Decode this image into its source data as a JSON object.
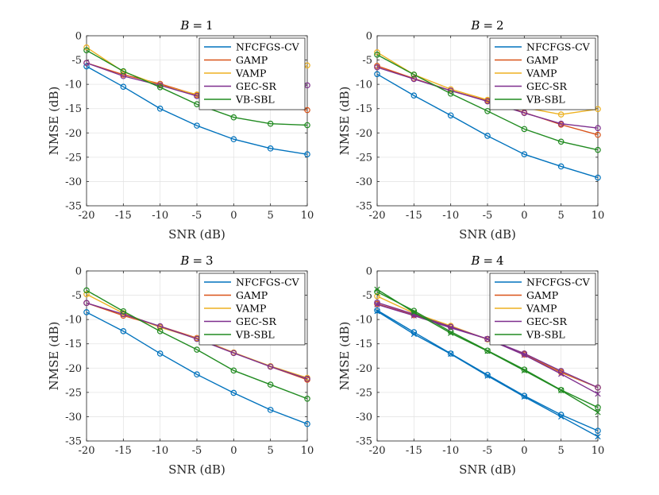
{
  "chart_data": [
    {
      "type": "line",
      "title": {
        "var": "B",
        "op": "=",
        "val": "1"
      },
      "xlabel": "SNR (dB)",
      "ylabel": "NMSE (dB)",
      "x": [
        -20,
        -15,
        -10,
        -5,
        0,
        5,
        10
      ],
      "xlim": [
        -20,
        10
      ],
      "ylim": [
        -35,
        0
      ],
      "xticks": [
        -20,
        -15,
        -10,
        -5,
        0,
        5,
        10
      ],
      "yticks": [
        0,
        -5,
        -10,
        -15,
        -20,
        -25,
        -30,
        -35
      ],
      "grid": true,
      "legend_position": "top-right",
      "series": [
        {
          "name": "NFCFGS-CV",
          "color": "#0072BD",
          "marker": "o",
          "values": [
            -6.3,
            -10.5,
            -15.0,
            -18.5,
            -21.3,
            -23.2,
            -24.4
          ]
        },
        {
          "name": "GAMP",
          "color": "#D95319",
          "marker": "o",
          "values": [
            -5.6,
            -8.0,
            -9.9,
            -12.2,
            -13.5,
            -14.3,
            -15.3
          ]
        },
        {
          "name": "VAMP",
          "color": "#EDB120",
          "marker": "o",
          "values": [
            -2.4,
            -7.4,
            -10.2,
            -12.1,
            -12.5,
            -10.2,
            -6.1
          ]
        },
        {
          "name": "GEC-SR",
          "color": "#7E2F8E",
          "marker": "o",
          "values": [
            -5.6,
            -8.3,
            -10.2,
            -12.4,
            -12.5,
            -12.0,
            -10.2
          ]
        },
        {
          "name": "VB-SBL",
          "color": "#218B21",
          "marker": "o",
          "values": [
            -3.0,
            -7.3,
            -10.6,
            -14.1,
            -16.8,
            -18.1,
            -18.4
          ]
        }
      ],
      "extra_series": []
    },
    {
      "type": "line",
      "title": {
        "var": "B",
        "op": "=",
        "val": "2"
      },
      "xlabel": "SNR (dB)",
      "ylabel": "NMSE (dB)",
      "x": [
        -20,
        -15,
        -10,
        -5,
        0,
        5,
        10
      ],
      "xlim": [
        -20,
        10
      ],
      "ylim": [
        -35,
        0
      ],
      "xticks": [
        -20,
        -15,
        -10,
        -5,
        0,
        5,
        10
      ],
      "yticks": [
        0,
        -5,
        -10,
        -15,
        -20,
        -25,
        -30,
        -35
      ],
      "grid": true,
      "legend_position": "top-right",
      "series": [
        {
          "name": "NFCFGS-CV",
          "color": "#0072BD",
          "marker": "o",
          "values": [
            -7.9,
            -12.3,
            -16.4,
            -20.6,
            -24.4,
            -26.9,
            -29.2
          ]
        },
        {
          "name": "GAMP",
          "color": "#D95319",
          "marker": "o",
          "values": [
            -6.2,
            -8.8,
            -11.3,
            -13.4,
            -15.8,
            -18.3,
            -20.4
          ]
        },
        {
          "name": "VAMP",
          "color": "#EDB120",
          "marker": "o",
          "values": [
            -3.4,
            -8.0,
            -11.0,
            -13.2,
            -14.8,
            -16.2,
            -15.1
          ]
        },
        {
          "name": "GEC-SR",
          "color": "#7E2F8E",
          "marker": "o",
          "values": [
            -6.5,
            -8.9,
            -11.3,
            -13.5,
            -15.9,
            -18.1,
            -19.0
          ]
        },
        {
          "name": "VB-SBL",
          "color": "#218B21",
          "marker": "o",
          "values": [
            -3.9,
            -8.0,
            -11.9,
            -15.5,
            -19.2,
            -21.8,
            -23.5
          ]
        }
      ],
      "extra_series": []
    },
    {
      "type": "line",
      "title": {
        "var": "B",
        "op": "=",
        "val": "3"
      },
      "xlabel": "SNR (dB)",
      "ylabel": "NMSE (dB)",
      "x": [
        -20,
        -15,
        -10,
        -5,
        0,
        5,
        10
      ],
      "xlim": [
        -20,
        10
      ],
      "ylim": [
        -35,
        0
      ],
      "xticks": [
        -20,
        -15,
        -10,
        -5,
        0,
        5,
        10
      ],
      "yticks": [
        0,
        -5,
        -10,
        -15,
        -20,
        -25,
        -30,
        -35
      ],
      "grid": true,
      "legend_position": "top-right",
      "series": [
        {
          "name": "NFCFGS-CV",
          "color": "#0072BD",
          "marker": "o",
          "values": [
            -8.5,
            -12.4,
            -17.0,
            -21.3,
            -25.1,
            -28.6,
            -31.5
          ]
        },
        {
          "name": "GAMP",
          "color": "#D95319",
          "marker": "o",
          "values": [
            -6.6,
            -9.2,
            -11.4,
            -13.8,
            -16.8,
            -19.7,
            -22.4
          ]
        },
        {
          "name": "VAMP",
          "color": "#EDB120",
          "marker": "o",
          "values": [
            -4.8,
            -8.7,
            -11.6,
            -13.9,
            -16.8,
            -19.6,
            -22.0
          ]
        },
        {
          "name": "GEC-SR",
          "color": "#7E2F8E",
          "marker": "o",
          "values": [
            -6.6,
            -8.9,
            -11.4,
            -14.0,
            -16.9,
            -19.7,
            -22.2
          ]
        },
        {
          "name": "VB-SBL",
          "color": "#218B21",
          "marker": "o",
          "values": [
            -4.0,
            -8.3,
            -12.4,
            -16.2,
            -20.5,
            -23.4,
            -26.3
          ]
        }
      ],
      "extra_series": []
    },
    {
      "type": "line",
      "title": {
        "var": "B",
        "op": "=",
        "val": "4"
      },
      "xlabel": "SNR (dB)",
      "ylabel": "NMSE (dB)",
      "x": [
        -20,
        -15,
        -10,
        -5,
        0,
        5,
        10
      ],
      "xlim": [
        -20,
        10
      ],
      "ylim": [
        -35,
        0
      ],
      "xticks": [
        -20,
        -15,
        -10,
        -5,
        0,
        5,
        10
      ],
      "yticks": [
        0,
        -5,
        -10,
        -15,
        -20,
        -25,
        -30,
        -35
      ],
      "grid": true,
      "legend_position": "top-right",
      "series": [
        {
          "name": "NFCFGS-CV",
          "color": "#0072BD",
          "marker": "o",
          "values": [
            -8.1,
            -12.6,
            -17.0,
            -21.4,
            -25.7,
            -29.6,
            -32.9
          ]
        },
        {
          "name": "GAMP",
          "color": "#D95319",
          "marker": "o",
          "values": [
            -6.8,
            -9.1,
            -11.5,
            -14.0,
            -17.2,
            -20.9,
            -24.0
          ]
        },
        {
          "name": "VAMP",
          "color": "#EDB120",
          "marker": "o",
          "values": [
            -5.2,
            -8.7,
            -11.3,
            -14.1,
            -17.0,
            -20.7,
            -24.0
          ]
        },
        {
          "name": "GEC-SR",
          "color": "#7E2F8E",
          "marker": "o",
          "values": [
            -6.5,
            -8.9,
            -11.5,
            -14.0,
            -17.0,
            -20.6,
            -24.0
          ]
        },
        {
          "name": "VB-SBL",
          "color": "#218B21",
          "marker": "o",
          "values": [
            -4.3,
            -8.2,
            -12.5,
            -16.4,
            -20.3,
            -24.5,
            -28.1
          ]
        }
      ],
      "extra_series": [
        {
          "color": "#0072BD",
          "marker": "x",
          "values": [
            -8.3,
            -13.0,
            -17.1,
            -21.6,
            -25.9,
            -30.0,
            -34.1
          ]
        },
        {
          "color": "#7E2F8E",
          "marker": "x",
          "values": [
            -6.9,
            -9.2,
            -11.7,
            -14.0,
            -17.3,
            -21.2,
            -25.3
          ]
        },
        {
          "color": "#218B21",
          "marker": "x",
          "values": [
            -3.8,
            -8.5,
            -12.8,
            -16.5,
            -20.5,
            -24.6,
            -29.1
          ]
        }
      ]
    }
  ]
}
